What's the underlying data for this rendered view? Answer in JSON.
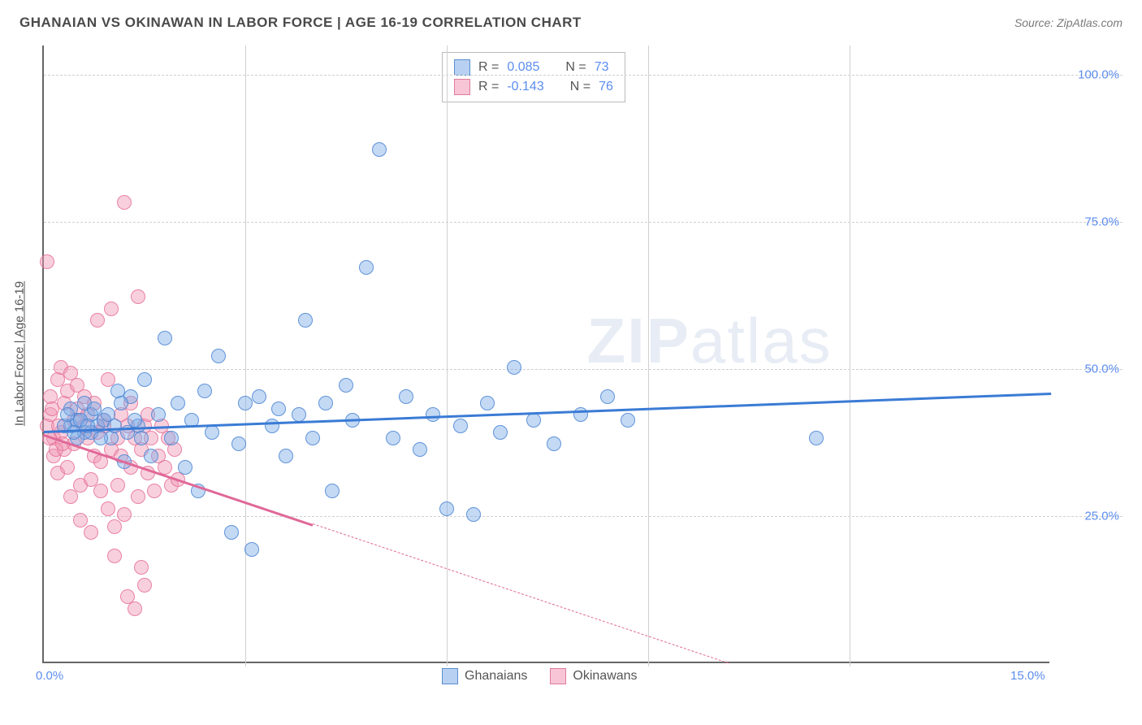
{
  "header": {
    "title": "GHANAIAN VS OKINAWAN IN LABOR FORCE | AGE 16-19 CORRELATION CHART",
    "source": "Source: ZipAtlas.com"
  },
  "chart": {
    "type": "scatter",
    "ylabel": "In Labor Force | Age 16-19",
    "xlim": [
      0,
      15
    ],
    "ylim": [
      0,
      105
    ],
    "xticks": [
      {
        "v": 0,
        "label": "0.0%"
      },
      {
        "v": 15,
        "label": "15.0%"
      }
    ],
    "xticks_minor": [
      3,
      6,
      9,
      12
    ],
    "yticks": [
      {
        "v": 25,
        "label": "25.0%"
      },
      {
        "v": 50,
        "label": "50.0%"
      },
      {
        "v": 75,
        "label": "75.0%"
      },
      {
        "v": 100,
        "label": "100.0%"
      }
    ],
    "grid_color": "#d0d0d0",
    "background_color": "#ffffff",
    "axis_color": "#666666",
    "watermark": "ZIPatlas",
    "legend_top": [
      {
        "swatch": "blue",
        "r_label": "R = ",
        "r_val": "0.085",
        "n_label": "N = ",
        "n_val": "73"
      },
      {
        "swatch": "pink",
        "r_label": "R = ",
        "r_val": "-0.143",
        "n_label": "N = ",
        "n_val": "76"
      }
    ],
    "legend_bottom": [
      {
        "swatch": "blue",
        "label": "Ghanaians"
      },
      {
        "swatch": "pink",
        "label": "Okinawans"
      }
    ],
    "series": {
      "blue": {
        "color_fill": "rgba(125,170,230,0.45)",
        "color_stroke": "rgba(70,130,210,0.8)",
        "line_color": "#3a7bd5",
        "regression": {
          "x1": 0,
          "y1": 39.5,
          "x2": 15,
          "y2": 46,
          "solid_to_x": 15
        },
        "points": [
          [
            0.4,
            40
          ],
          [
            0.5,
            41
          ],
          [
            0.6,
            39
          ],
          [
            0.4,
            43
          ],
          [
            0.7,
            42
          ],
          [
            0.5,
            38
          ],
          [
            0.8,
            40
          ],
          [
            0.6,
            44
          ],
          [
            0.9,
            41
          ],
          [
            0.7,
            39
          ],
          [
            1.0,
            38
          ],
          [
            1.1,
            46
          ],
          [
            1.2,
            34
          ],
          [
            1.3,
            45
          ],
          [
            1.4,
            40
          ],
          [
            1.5,
            48
          ],
          [
            1.6,
            35
          ],
          [
            1.7,
            42
          ],
          [
            1.8,
            55
          ],
          [
            1.9,
            38
          ],
          [
            2.0,
            44
          ],
          [
            2.1,
            33
          ],
          [
            2.2,
            41
          ],
          [
            2.3,
            29
          ],
          [
            2.4,
            46
          ],
          [
            2.5,
            39
          ],
          [
            2.6,
            52
          ],
          [
            2.8,
            22
          ],
          [
            2.9,
            37
          ],
          [
            3.0,
            44
          ],
          [
            3.1,
            19
          ],
          [
            3.2,
            45
          ],
          [
            3.4,
            40
          ],
          [
            3.5,
            43
          ],
          [
            3.6,
            35
          ],
          [
            3.8,
            42
          ],
          [
            3.9,
            58
          ],
          [
            4.0,
            38
          ],
          [
            4.2,
            44
          ],
          [
            4.3,
            29
          ],
          [
            4.5,
            47
          ],
          [
            4.6,
            41
          ],
          [
            4.8,
            67
          ],
          [
            5.0,
            87
          ],
          [
            5.2,
            38
          ],
          [
            5.4,
            45
          ],
          [
            5.6,
            36
          ],
          [
            5.8,
            42
          ],
          [
            6.0,
            26
          ],
          [
            6.2,
            40
          ],
          [
            6.4,
            25
          ],
          [
            6.6,
            44
          ],
          [
            6.8,
            39
          ],
          [
            7.0,
            50
          ],
          [
            7.3,
            41
          ],
          [
            7.6,
            37
          ],
          [
            8.0,
            42
          ],
          [
            8.4,
            45
          ],
          [
            8.7,
            41
          ],
          [
            11.5,
            38
          ],
          [
            0.3,
            40
          ],
          [
            0.35,
            42
          ],
          [
            0.45,
            39
          ],
          [
            0.55,
            41
          ],
          [
            0.65,
            40
          ],
          [
            0.75,
            43
          ],
          [
            0.85,
            38
          ],
          [
            0.95,
            42
          ],
          [
            1.05,
            40
          ],
          [
            1.15,
            44
          ],
          [
            1.25,
            39
          ],
          [
            1.35,
            41
          ],
          [
            1.45,
            38
          ]
        ]
      },
      "pink": {
        "color_fill": "rgba(240,150,180,0.45)",
        "color_stroke": "rgba(230,110,150,0.8)",
        "line_color": "#e06898",
        "regression": {
          "x1": 0,
          "y1": 39,
          "x2": 10.2,
          "y2": 0,
          "solid_to_x": 4.0
        },
        "points": [
          [
            0.05,
            40
          ],
          [
            0.1,
            42
          ],
          [
            0.15,
            38
          ],
          [
            0.1,
            45
          ],
          [
            0.2,
            48
          ],
          [
            0.15,
            35
          ],
          [
            0.25,
            50
          ],
          [
            0.2,
            32
          ],
          [
            0.3,
            44
          ],
          [
            0.25,
            39
          ],
          [
            0.35,
            46
          ],
          [
            0.3,
            36
          ],
          [
            0.4,
            49
          ],
          [
            0.35,
            33
          ],
          [
            0.45,
            41
          ],
          [
            0.4,
            28
          ],
          [
            0.5,
            43
          ],
          [
            0.45,
            37
          ],
          [
            0.55,
            30
          ],
          [
            0.5,
            47
          ],
          [
            0.6,
            40
          ],
          [
            0.55,
            24
          ],
          [
            0.65,
            38
          ],
          [
            0.6,
            45
          ],
          [
            0.7,
            31
          ],
          [
            0.65,
            42
          ],
          [
            0.75,
            35
          ],
          [
            0.7,
            22
          ],
          [
            0.8,
            39
          ],
          [
            0.75,
            44
          ],
          [
            0.85,
            29
          ],
          [
            0.8,
            58
          ],
          [
            0.9,
            40
          ],
          [
            0.85,
            34
          ],
          [
            0.95,
            26
          ],
          [
            0.9,
            41
          ],
          [
            1.0,
            36
          ],
          [
            0.95,
            48
          ],
          [
            1.05,
            23
          ],
          [
            1.0,
            60
          ],
          [
            1.1,
            38
          ],
          [
            1.05,
            18
          ],
          [
            1.15,
            42
          ],
          [
            1.1,
            30
          ],
          [
            1.2,
            78
          ],
          [
            1.15,
            35
          ],
          [
            1.25,
            40
          ],
          [
            1.2,
            25
          ],
          [
            1.3,
            33
          ],
          [
            1.25,
            11
          ],
          [
            1.35,
            38
          ],
          [
            1.3,
            44
          ],
          [
            1.4,
            28
          ],
          [
            1.35,
            9
          ],
          [
            1.45,
            36
          ],
          [
            1.4,
            62
          ],
          [
            1.5,
            40
          ],
          [
            1.45,
            16
          ],
          [
            1.55,
            32
          ],
          [
            1.5,
            13
          ],
          [
            1.6,
            38
          ],
          [
            1.55,
            42
          ],
          [
            1.65,
            29
          ],
          [
            1.7,
            35
          ],
          [
            1.75,
            40
          ],
          [
            1.8,
            33
          ],
          [
            1.85,
            38
          ],
          [
            1.9,
            30
          ],
          [
            1.95,
            36
          ],
          [
            2.0,
            31
          ],
          [
            0.05,
            68
          ],
          [
            0.08,
            38
          ],
          [
            0.12,
            43
          ],
          [
            0.18,
            36
          ],
          [
            0.22,
            40
          ],
          [
            0.28,
            37
          ]
        ]
      }
    }
  }
}
